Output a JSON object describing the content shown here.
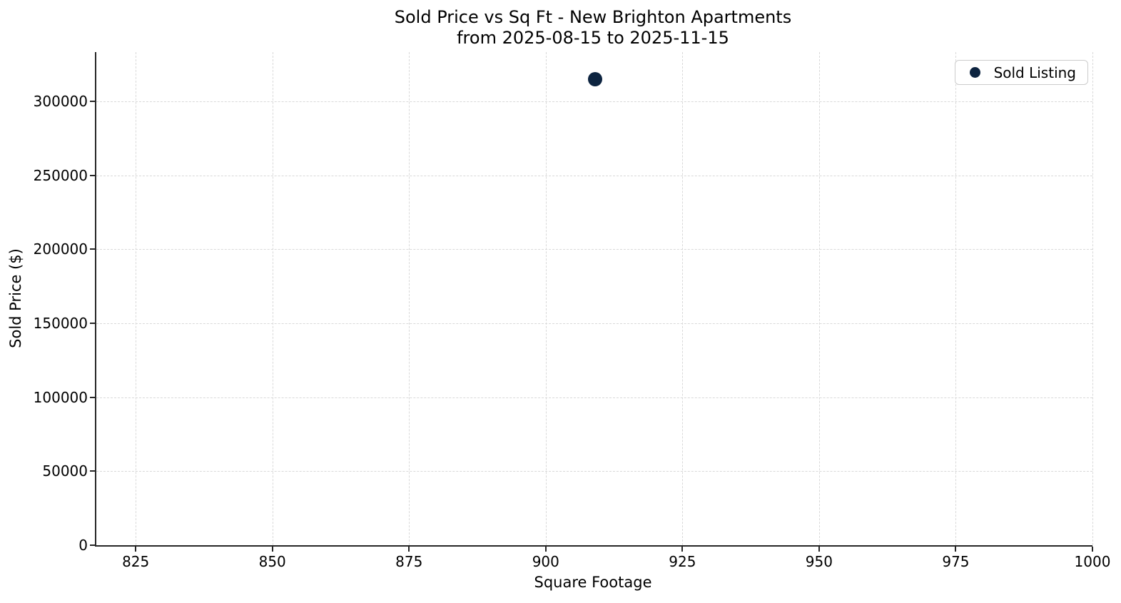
{
  "figure": {
    "title_line1": "Sold Price vs Sq Ft - New Brighton Apartments",
    "title_line2": "from 2025-08-15 to 2025-11-15",
    "xlabel": "Square Footage",
    "ylabel": "Sold Price ($)",
    "legend": {
      "label": "Sold Listing"
    }
  },
  "chart_data": {
    "type": "scatter",
    "title": "Sold Price vs Sq Ft - New Brighton Apartments\nfrom 2025-08-15 to 2025-11-15",
    "xlabel": "Square Footage",
    "ylabel": "Sold Price ($)",
    "series": [
      {
        "name": "Sold Listing",
        "marker": "circle",
        "color": "#0d2440",
        "points": [
          {
            "x": 909,
            "y": 315000
          }
        ]
      }
    ],
    "xlim": [
      817.8,
      1000.0
    ],
    "ylim": [
      0,
      333300
    ],
    "xticks": [
      825,
      850,
      875,
      900,
      925,
      950,
      975,
      1000
    ],
    "yticks": [
      0,
      50000,
      100000,
      150000,
      200000,
      250000,
      300000
    ],
    "grid": {
      "visible": true,
      "style": "dashed",
      "color": "#d9d9d9"
    },
    "legend_position": "upper right"
  },
  "colors": {
    "background": "#ffffff",
    "marker": "#0d2440",
    "spine": "#262626",
    "grid": "#d9d9d9",
    "text": "#000000",
    "legend_border": "#cccccc"
  }
}
